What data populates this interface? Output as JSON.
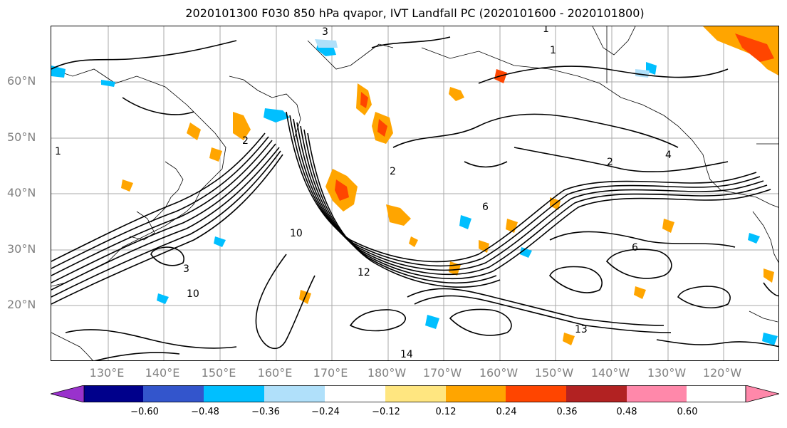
{
  "title": "2020101300 F030 850 hPa qvapor, IVT Landfall PC (2020101600 - 2020101800)",
  "lat_labels": [
    "60°N",
    "50°N",
    "40°N",
    "30°N",
    "20°N"
  ],
  "lon_labels": [
    "130°E",
    "140°E",
    "150°E",
    "160°E",
    "170°E",
    "180°W",
    "170°W",
    "160°W",
    "150°W",
    "140°W",
    "130°W",
    "120°W"
  ],
  "colorbar": {
    "ticks": [
      "−0.60",
      "−0.48",
      "−0.36",
      "−0.24",
      "−0.12",
      "0.12",
      "0.24",
      "0.36",
      "0.48",
      "0.60"
    ],
    "colors": [
      "#9932cc",
      "#00008b",
      "#3355cc",
      "#00bfff",
      "#b0e0fa",
      "#ffffff",
      "#ffe680",
      "#ffa500",
      "#ff4500",
      "#b22222",
      "#ff88aa"
    ]
  },
  "contour_labels": [
    "1",
    "1",
    "1",
    "2",
    "2",
    "2",
    "3",
    "3",
    "4",
    "6",
    "6",
    "10",
    "10",
    "12",
    "13",
    "14"
  ]
}
